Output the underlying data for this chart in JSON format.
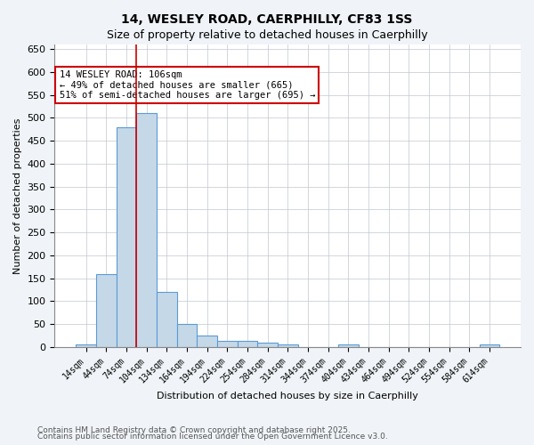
{
  "title_line1": "14, WESLEY ROAD, CAERPHILLY, CF83 1SS",
  "title_line2": "Size of property relative to detached houses in Caerphilly",
  "xlabel": "Distribution of detached houses by size in Caerphilly",
  "ylabel": "Number of detached properties",
  "categories": [
    "14sqm",
    "44sqm",
    "74sqm",
    "104sqm",
    "134sqm",
    "164sqm",
    "194sqm",
    "224sqm",
    "254sqm",
    "284sqm",
    "314sqm",
    "344sqm",
    "374sqm",
    "404sqm",
    "434sqm",
    "464sqm",
    "494sqm",
    "524sqm",
    "554sqm",
    "584sqm",
    "614sqm"
  ],
  "values": [
    5,
    160,
    480,
    510,
    120,
    50,
    25,
    13,
    13,
    9,
    6,
    0,
    0,
    5,
    0,
    0,
    0,
    0,
    0,
    0,
    5
  ],
  "bar_color": "#c5d8e8",
  "bar_edge_color": "#5b9bd5",
  "vline_x": 106,
  "vline_color": "#cc0000",
  "annotation_text": "14 WESLEY ROAD: 106sqm\n← 49% of detached houses are smaller (665)\n51% of semi-detached houses are larger (695) →",
  "annotation_box_color": "#ffffff",
  "annotation_box_edge": "#cc0000",
  "ylim": [
    0,
    660
  ],
  "yticks": [
    0,
    50,
    100,
    150,
    200,
    250,
    300,
    350,
    400,
    450,
    500,
    550,
    600,
    650
  ],
  "footnote_line1": "Contains HM Land Registry data © Crown copyright and database right 2025.",
  "footnote_line2": "Contains public sector information licensed under the Open Government Licence v3.0.",
  "bg_color": "#f0f4f8",
  "plot_bg_color": "#ffffff",
  "grid_color": "#c0c8d0"
}
